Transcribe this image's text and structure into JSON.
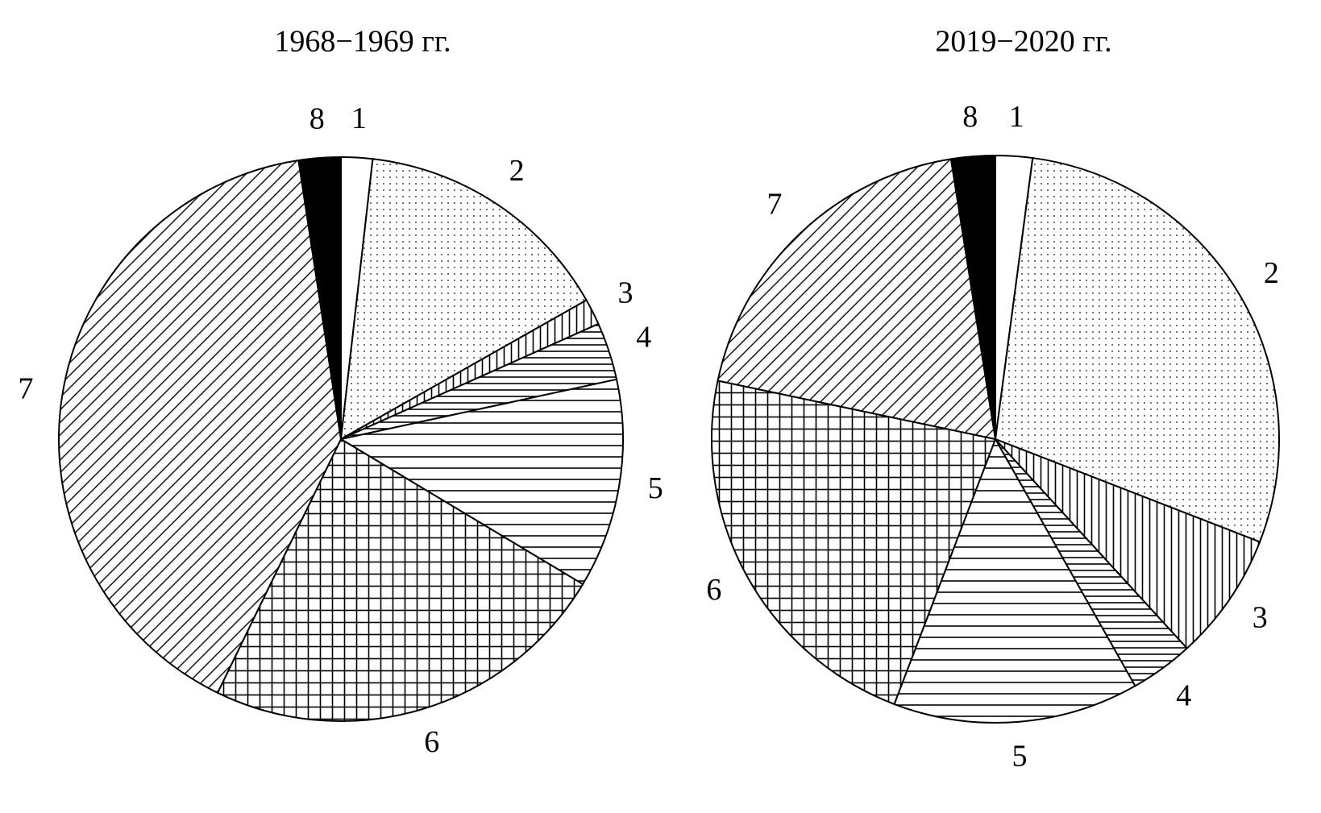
{
  "chart_data": [
    {
      "type": "pie",
      "title": "1968−1969 гг.",
      "categories": [
        "1",
        "2",
        "3",
        "4",
        "5",
        "6",
        "7",
        "8"
      ],
      "values": [
        1.8,
        15,
        1.5,
        3.3,
        12,
        23.6,
        40.4,
        2.4
      ]
    },
    {
      "type": "pie",
      "title": "2019−2020 гг.",
      "categories": [
        "1",
        "2",
        "3",
        "4",
        "5",
        "6",
        "7",
        "8"
      ],
      "values": [
        2.1,
        28.8,
        7.3,
        3.6,
        14,
        22.5,
        19.2,
        2.5
      ]
    }
  ]
}
